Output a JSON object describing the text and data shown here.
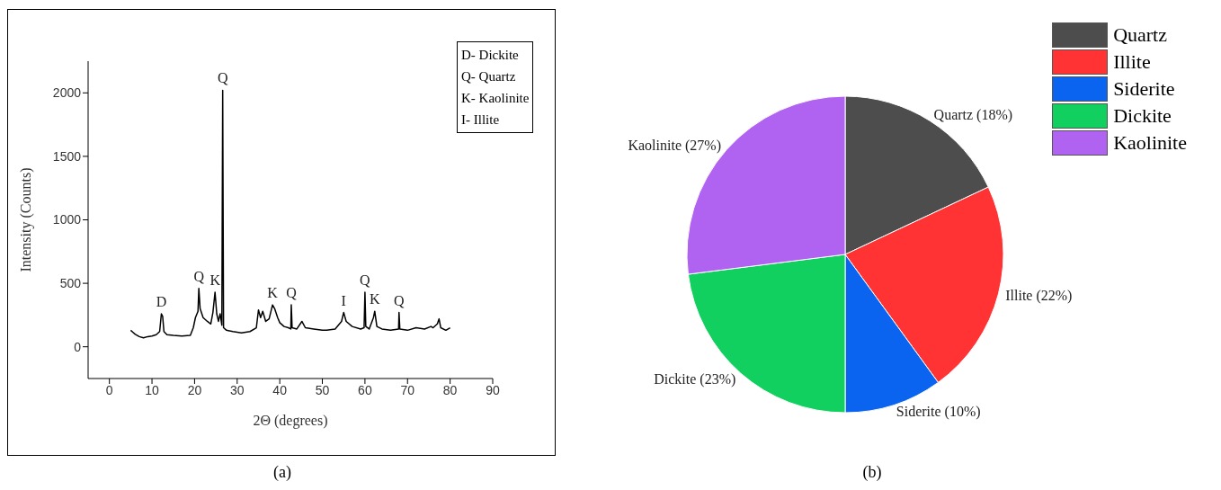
{
  "chart_data": [
    {
      "type": "line",
      "xlabel": "2Θ (degrees)",
      "ylabel": "Intensity (Counts)",
      "xlim": [
        -5,
        90
      ],
      "xticks": [
        0,
        10,
        20,
        30,
        40,
        50,
        60,
        70,
        80,
        90
      ],
      "ylim": [
        -250,
        2250
      ],
      "yticks": [
        0,
        500,
        1000,
        1500,
        2000
      ],
      "grid": false,
      "legend": false,
      "marker": "none",
      "line_style": "solid",
      "series": [
        {
          "color": "#000000",
          "x": [
            5,
            5.5,
            6,
            7,
            8,
            9,
            10,
            11,
            11.8,
            12.2,
            12.5,
            12.8,
            13.5,
            15,
            17,
            19,
            19.7,
            20.2,
            20.8,
            21,
            21.3,
            22,
            23,
            23.8,
            24.3,
            24.8,
            25.2,
            25.6,
            26,
            26.4,
            26.6,
            26.8,
            27.5,
            29,
            31,
            33,
            34.5,
            35,
            35.5,
            36,
            36.7,
            37.5,
            38.3,
            38.8,
            39.5,
            40,
            41,
            42,
            42.6,
            42.7,
            42.9,
            44,
            45.2,
            46,
            48,
            50,
            51,
            53,
            54.5,
            55,
            55.6,
            57,
            59,
            59.8,
            60,
            60.2,
            61,
            62,
            62.3,
            62.8,
            64,
            66,
            67.9,
            68,
            68.2,
            70,
            72,
            74,
            75.5,
            76,
            77,
            77.4,
            77.8,
            79,
            80
          ],
          "values": [
            130,
            115,
            100,
            80,
            70,
            80,
            85,
            95,
            120,
            260,
            240,
            120,
            95,
            90,
            85,
            90,
            150,
            230,
            280,
            460,
            300,
            230,
            200,
            180,
            270,
            430,
            260,
            200,
            260,
            170,
            2020,
            150,
            130,
            120,
            110,
            120,
            150,
            290,
            230,
            280,
            200,
            220,
            330,
            300,
            230,
            190,
            160,
            150,
            140,
            330,
            150,
            140,
            200,
            150,
            140,
            130,
            130,
            140,
            200,
            270,
            200,
            160,
            140,
            150,
            430,
            160,
            140,
            230,
            280,
            160,
            140,
            130,
            140,
            270,
            140,
            130,
            150,
            140,
            160,
            150,
            180,
            220,
            150,
            130,
            150
          ]
        }
      ],
      "annotations": [
        {
          "text": "D",
          "x": 12.2,
          "y": 260
        },
        {
          "text": "Q",
          "x": 21,
          "y": 460
        },
        {
          "text": "K",
          "x": 24.8,
          "y": 430
        },
        {
          "text": "Q",
          "x": 26.6,
          "y": 2020
        },
        {
          "text": "K",
          "x": 38.3,
          "y": 330
        },
        {
          "text": "Q",
          "x": 42.7,
          "y": 330
        },
        {
          "text": "I",
          "x": 55,
          "y": 270
        },
        {
          "text": "Q",
          "x": 60,
          "y": 430
        },
        {
          "text": "K",
          "x": 62.3,
          "y": 280
        },
        {
          "text": "Q",
          "x": 68,
          "y": 270
        },
        "D- Dickite",
        "Q- Quartz",
        "K- Kaolinite",
        "I- Illite",
        "(a)"
      ]
    },
    {
      "type": "pie",
      "categories": [
        "Quartz",
        "Illite",
        "Siderite",
        "Dickite",
        "Kaolinite"
      ],
      "values": [
        18,
        22,
        10,
        23,
        27
      ],
      "colors": [
        "#4d4d4d",
        "#ff3333",
        "#0a64f0",
        "#11d060",
        "#b062f0"
      ],
      "value_labels": [
        "Quartz (18%)",
        "Illite (22%)",
        "Siderite (10%)",
        "Dickite (23%)",
        "Kaolinite (27%)"
      ],
      "legend": "top right",
      "annotations": [
        "(b)"
      ]
    }
  ]
}
